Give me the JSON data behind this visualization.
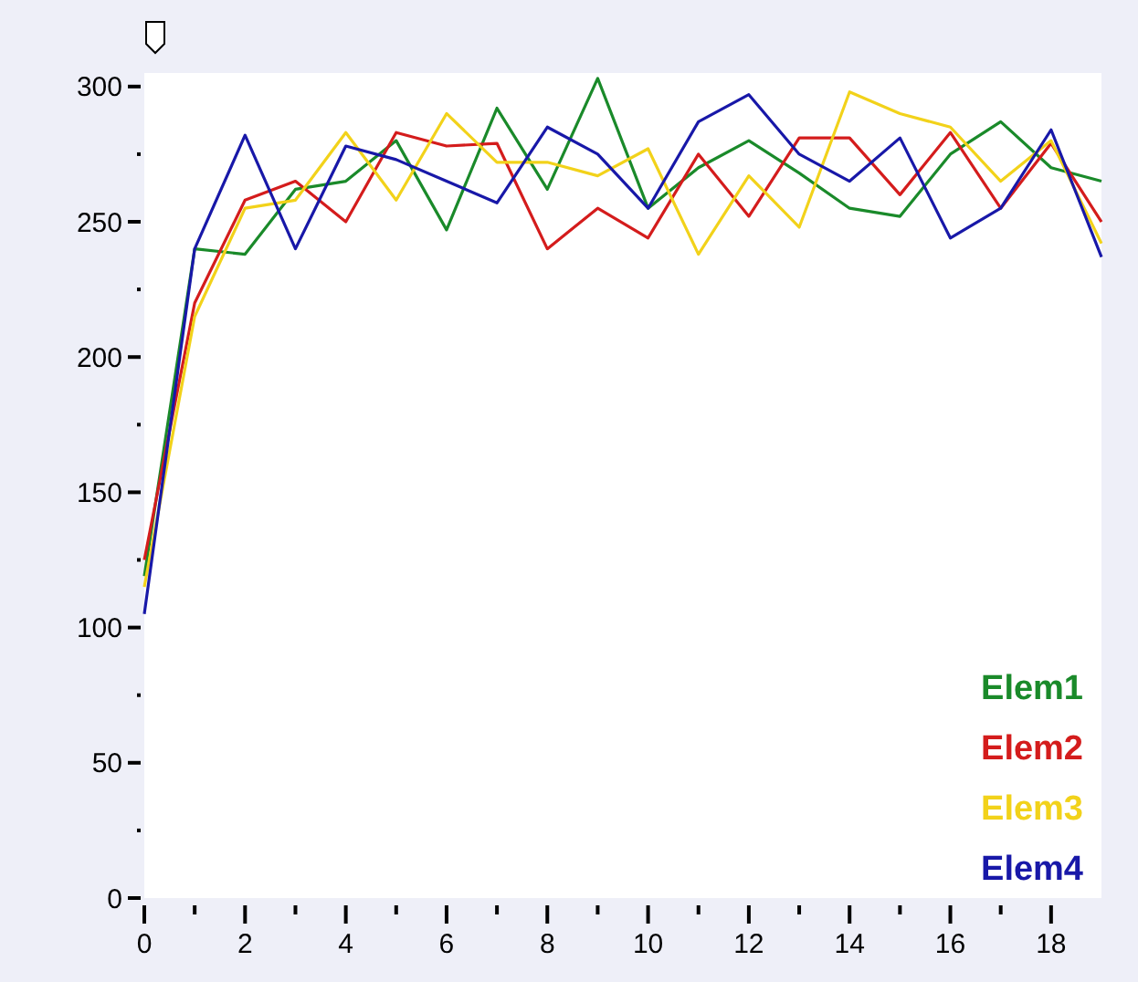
{
  "chart_data": {
    "type": "line",
    "x": [
      0,
      1,
      2,
      3,
      4,
      5,
      6,
      7,
      8,
      9,
      10,
      11,
      12,
      13,
      14,
      15,
      16,
      17,
      18,
      19
    ],
    "series": [
      {
        "name": "Elem1",
        "color": "#1a8a2a",
        "values": [
          119,
          240,
          238,
          262,
          265,
          280,
          247,
          292,
          262,
          303,
          255,
          270,
          280,
          268,
          255,
          252,
          275,
          287,
          270,
          265
        ]
      },
      {
        "name": "Elem2",
        "color": "#d41c1c",
        "values": [
          125,
          220,
          258,
          265,
          250,
          283,
          278,
          279,
          240,
          255,
          244,
          275,
          252,
          281,
          281,
          260,
          283,
          255,
          279,
          250
        ]
      },
      {
        "name": "Elem3",
        "color": "#f2d21a",
        "values": [
          115,
          215,
          255,
          258,
          283,
          258,
          290,
          272,
          272,
          267,
          277,
          238,
          267,
          248,
          298,
          290,
          285,
          265,
          280,
          242
        ]
      },
      {
        "name": "Elem4",
        "color": "#1818a8",
        "values": [
          105,
          240,
          282,
          240,
          278,
          273,
          265,
          257,
          285,
          275,
          255,
          287,
          297,
          275,
          265,
          281,
          244,
          255,
          284,
          237
        ]
      }
    ],
    "xlim": [
      0,
      19
    ],
    "ylim": [
      0,
      305
    ],
    "xticks": [
      0,
      {
        "value": 1,
        "label": null
      },
      2,
      {
        "value": 3,
        "label": null
      },
      4,
      {
        "value": 5,
        "label": null
      },
      6,
      {
        "value": 7,
        "label": null
      },
      8,
      {
        "value": 9,
        "label": null
      },
      10,
      {
        "value": 11,
        "label": null
      },
      12,
      {
        "value": 13,
        "label": null
      },
      14,
      {
        "value": 15,
        "label": null
      },
      16,
      {
        "value": 17,
        "label": null
      },
      18
    ],
    "yticks": [
      0,
      {
        "value": 25,
        "label": null
      },
      50,
      {
        "value": 75,
        "label": null
      },
      100,
      {
        "value": 125,
        "label": null
      },
      150,
      {
        "value": 175,
        "label": null
      },
      200,
      {
        "value": 225,
        "label": null
      },
      250,
      {
        "value": 275,
        "label": null
      },
      300
    ],
    "legend": "bottom right",
    "grid": false,
    "marker": "none",
    "line_style": "solid"
  }
}
